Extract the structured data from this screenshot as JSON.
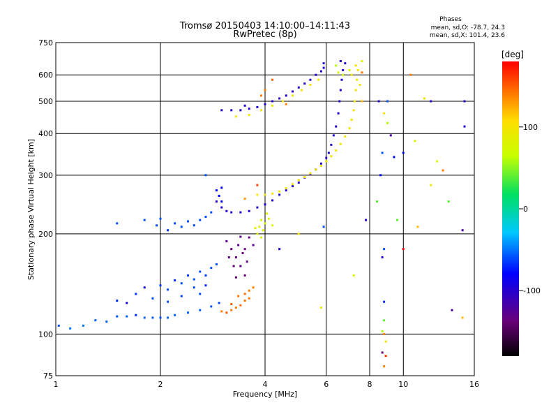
{
  "chart_data": {
    "type": "scatter",
    "title": "Tromsø 20150403 14:10:00–14:11:43",
    "subtitle": "RwPretec (8p)",
    "xlabel": "Frequency [MHz]",
    "ylabel": "Stationary phase Virtual Height [km]",
    "xscale": "log",
    "yscale": "log",
    "xlim": [
      1,
      16
    ],
    "ylim": [
      75,
      750
    ],
    "x_ticks": [
      1,
      2,
      4,
      6,
      8,
      10,
      16
    ],
    "x_tick_labels": [
      "1",
      "2",
      "4",
      "6",
      "8",
      "10",
      "16"
    ],
    "y_ticks": [
      75,
      100,
      200,
      300,
      400,
      500,
      600,
      750
    ],
    "y_tick_labels": [
      "75",
      "100",
      "200",
      "300",
      "400",
      "500",
      "600",
      "750"
    ],
    "grid": true,
    "stats": {
      "heading": "Phases",
      "line1": "mean, sd,O: -78.7, 24.3",
      "line2": "mean, sd,X: 101.4, 23.6"
    },
    "colorbar": {
      "label": "[deg]",
      "range": [
        -180,
        180
      ],
      "ticks": [
        100,
        0,
        -100
      ],
      "tick_labels": [
        "100",
        "0",
        "-100"
      ]
    },
    "series": [
      {
        "note": "lower trace",
        "points": [
          [
            1.02,
            106,
            -60
          ],
          [
            1.1,
            104,
            -50
          ],
          [
            1.2,
            106,
            -50
          ],
          [
            1.3,
            110,
            -55
          ],
          [
            1.4,
            109,
            -55
          ],
          [
            1.5,
            113,
            -60
          ],
          [
            1.6,
            113,
            -55
          ],
          [
            1.7,
            114,
            -70
          ],
          [
            1.8,
            112,
            -55
          ],
          [
            1.9,
            112,
            -55
          ],
          [
            2.0,
            112,
            -60
          ],
          [
            2.1,
            112,
            -55
          ],
          [
            2.2,
            114,
            -55
          ],
          [
            2.4,
            116,
            -55
          ],
          [
            2.6,
            118,
            -55
          ],
          [
            2.8,
            121,
            -60
          ],
          [
            2.95,
            124,
            -60
          ]
        ]
      },
      {
        "note": "lower cloud",
        "points": [
          [
            1.5,
            126,
            -70
          ],
          [
            1.6,
            124,
            -90
          ],
          [
            1.7,
            132,
            -65
          ],
          [
            1.8,
            138,
            -90
          ],
          [
            1.9,
            128,
            -60
          ],
          [
            2.0,
            140,
            -65
          ],
          [
            2.1,
            136,
            -60
          ],
          [
            2.2,
            145,
            -70
          ],
          [
            2.3,
            142,
            -60
          ],
          [
            2.4,
            150,
            -65
          ],
          [
            2.5,
            146,
            -60
          ],
          [
            2.6,
            154,
            -60
          ],
          [
            2.7,
            150,
            -65
          ],
          [
            2.8,
            158,
            -60
          ],
          [
            2.9,
            162,
            -60
          ],
          [
            2.6,
            132,
            -60
          ],
          [
            2.3,
            130,
            -65
          ],
          [
            2.1,
            125,
            -60
          ],
          [
            2.7,
            140,
            -70
          ],
          [
            2.5,
            138,
            -60
          ]
        ]
      },
      {
        "note": "purple cluster",
        "points": [
          [
            3.1,
            190,
            -130
          ],
          [
            3.2,
            180,
            -140
          ],
          [
            3.3,
            170,
            -130
          ],
          [
            3.4,
            160,
            -130
          ],
          [
            3.5,
            150,
            -140
          ],
          [
            3.15,
            170,
            -130
          ],
          [
            3.25,
            160,
            -140
          ],
          [
            3.35,
            185,
            -130
          ],
          [
            3.45,
            175,
            -140
          ],
          [
            3.55,
            165,
            -130
          ],
          [
            3.6,
            195,
            -135
          ],
          [
            3.7,
            185,
            -130
          ],
          [
            3.3,
            148,
            -140
          ],
          [
            3.4,
            196,
            -130
          ],
          [
            3.5,
            180,
            -135
          ]
        ]
      },
      {
        "note": "orange cluster",
        "points": [
          [
            3.0,
            117,
            140
          ],
          [
            3.1,
            116,
            150
          ],
          [
            3.2,
            118,
            140
          ],
          [
            3.3,
            120,
            140
          ],
          [
            3.4,
            122,
            145
          ],
          [
            3.5,
            126,
            140
          ],
          [
            3.6,
            128,
            140
          ],
          [
            3.2,
            123,
            150
          ],
          [
            3.35,
            130,
            140
          ],
          [
            3.5,
            132,
            145
          ],
          [
            3.6,
            135,
            140
          ],
          [
            3.7,
            138,
            140
          ]
        ]
      },
      {
        "note": "middle cyan",
        "points": [
          [
            1.5,
            215,
            -60
          ],
          [
            1.8,
            220,
            -60
          ],
          [
            2.0,
            222,
            -60
          ],
          [
            2.2,
            215,
            -60
          ],
          [
            2.4,
            218,
            -60
          ],
          [
            2.1,
            205,
            -65
          ],
          [
            2.3,
            210,
            -60
          ],
          [
            2.5,
            212,
            -60
          ],
          [
            2.6,
            220,
            -60
          ],
          [
            2.7,
            225,
            -60
          ],
          [
            2.8,
            232,
            -60
          ],
          [
            1.95,
            212,
            -60
          ]
        ]
      },
      {
        "note": "O trace F2",
        "points": [
          [
            2.9,
            250,
            -100
          ],
          [
            3.0,
            240,
            -100
          ],
          [
            3.1,
            234,
            -100
          ],
          [
            3.2,
            232,
            -100
          ],
          [
            3.4,
            232,
            -100
          ],
          [
            3.6,
            234,
            -100
          ],
          [
            3.8,
            240,
            -100
          ],
          [
            4.0,
            245,
            -100
          ],
          [
            4.2,
            252,
            -100
          ],
          [
            4.4,
            262,
            -100
          ],
          [
            4.6,
            270,
            -100
          ],
          [
            4.8,
            278,
            -100
          ],
          [
            5.0,
            285,
            -100
          ],
          [
            5.2,
            295,
            -100
          ],
          [
            5.4,
            302,
            -100
          ],
          [
            5.6,
            312,
            -100
          ],
          [
            5.8,
            325,
            -100
          ],
          [
            6.0,
            338,
            -100
          ],
          [
            6.1,
            350,
            -100
          ],
          [
            6.2,
            370,
            -100
          ],
          [
            6.3,
            395,
            -100
          ],
          [
            6.4,
            420,
            -100
          ],
          [
            6.5,
            460,
            -100
          ],
          [
            6.55,
            500,
            -100
          ],
          [
            6.6,
            540,
            -100
          ],
          [
            6.65,
            580,
            -100
          ],
          [
            6.7,
            620,
            -100
          ],
          [
            2.9,
            270,
            -80
          ],
          [
            2.95,
            260,
            -80
          ],
          [
            3.0,
            250,
            -80
          ],
          [
            3.0,
            275,
            -80
          ]
        ]
      },
      {
        "note": "X trace F2",
        "points": [
          [
            3.8,
            262,
            100
          ],
          [
            4.0,
            262,
            100
          ],
          [
            4.2,
            264,
            100
          ],
          [
            4.4,
            268,
            100
          ],
          [
            4.6,
            274,
            100
          ],
          [
            4.8,
            282,
            100
          ],
          [
            5.0,
            290,
            100
          ],
          [
            5.2,
            296,
            100
          ],
          [
            5.4,
            304,
            100
          ],
          [
            5.6,
            312,
            100
          ],
          [
            5.8,
            320,
            100
          ],
          [
            6.0,
            330,
            100
          ],
          [
            6.2,
            342,
            100
          ],
          [
            6.4,
            356,
            100
          ],
          [
            6.6,
            372,
            100
          ],
          [
            6.8,
            392,
            100
          ],
          [
            7.0,
            415,
            100
          ],
          [
            7.1,
            440,
            100
          ],
          [
            7.2,
            470,
            100
          ],
          [
            7.25,
            500,
            100
          ],
          [
            7.3,
            540,
            100
          ],
          [
            7.35,
            580,
            100
          ],
          [
            7.4,
            620,
            100
          ],
          [
            7.1,
            600,
            100
          ]
        ]
      },
      {
        "note": "yellow cluster",
        "points": [
          [
            3.8,
            200,
            80
          ],
          [
            3.85,
            210,
            80
          ],
          [
            3.9,
            220,
            80
          ],
          [
            3.95,
            205,
            80
          ],
          [
            4.0,
            215,
            80
          ],
          [
            4.1,
            222,
            80
          ],
          [
            3.9,
            195,
            80
          ],
          [
            4.05,
            230,
            80
          ],
          [
            4.2,
            212,
            80
          ],
          [
            3.75,
            208,
            80
          ]
        ]
      },
      {
        "note": "upper O trace",
        "points": [
          [
            3.0,
            470,
            -100
          ],
          [
            3.2,
            470,
            -100
          ],
          [
            3.4,
            470,
            -100
          ],
          [
            3.6,
            475,
            -100
          ],
          [
            3.8,
            480,
            -100
          ],
          [
            4.0,
            490,
            -100
          ],
          [
            4.2,
            500,
            -100
          ],
          [
            4.4,
            510,
            -100
          ],
          [
            4.6,
            520,
            -100
          ],
          [
            4.8,
            535,
            -100
          ],
          [
            5.0,
            550,
            -100
          ],
          [
            5.2,
            565,
            -100
          ],
          [
            5.4,
            580,
            -100
          ],
          [
            5.6,
            600,
            -100
          ],
          [
            5.8,
            615,
            -100
          ],
          [
            5.9,
            630,
            -100
          ],
          [
            5.9,
            650,
            -100
          ],
          [
            3.5,
            485,
            -100
          ]
        ]
      },
      {
        "note": "upper X trace",
        "points": [
          [
            3.3,
            450,
            100
          ],
          [
            3.6,
            455,
            100
          ],
          [
            3.9,
            470,
            100
          ],
          [
            4.2,
            485,
            100
          ],
          [
            4.5,
            500,
            100
          ],
          [
            4.8,
            520,
            100
          ],
          [
            5.1,
            540,
            100
          ],
          [
            5.4,
            560,
            100
          ],
          [
            5.7,
            580,
            100
          ],
          [
            4.0,
            540,
            140
          ],
          [
            3.9,
            520,
            140
          ]
        ]
      },
      {
        "note": "near vertical",
        "points": [
          [
            6.4,
            640,
            60
          ],
          [
            6.5,
            610,
            80
          ],
          [
            6.6,
            660,
            -100
          ],
          [
            6.7,
            600,
            70
          ],
          [
            6.8,
            650,
            -100
          ],
          [
            7.0,
            620,
            80
          ],
          [
            7.3,
            640,
            100
          ],
          [
            7.6,
            660,
            80
          ],
          [
            7.6,
            610,
            140
          ],
          [
            7.5,
            560,
            100
          ],
          [
            7.6,
            500,
            120
          ]
        ]
      },
      {
        "note": "scattered",
        "points": [
          [
            8.5,
            500,
            -100
          ],
          [
            8.8,
            460,
            100
          ],
          [
            9.0,
            430,
            60
          ],
          [
            9.0,
            500,
            -60
          ],
          [
            10.5,
            600,
            140
          ],
          [
            11.5,
            510,
            100
          ],
          [
            12.0,
            500,
            -100
          ],
          [
            15.0,
            500,
            -100
          ],
          [
            15.0,
            420,
            -100
          ],
          [
            13.5,
            250,
            40
          ],
          [
            10.0,
            180,
            180
          ],
          [
            11.0,
            210,
            120
          ],
          [
            12.5,
            330,
            70
          ],
          [
            12.0,
            280,
            90
          ],
          [
            10.8,
            380,
            80
          ],
          [
            8.4,
            250,
            40
          ],
          [
            8.6,
            300,
            -80
          ],
          [
            8.7,
            350,
            -60
          ],
          [
            8.8,
            180,
            -60
          ],
          [
            8.7,
            170,
            -100
          ],
          [
            8.8,
            125,
            -70
          ],
          [
            8.8,
            110,
            40
          ],
          [
            8.7,
            102,
            60
          ],
          [
            8.8,
            100,
            140
          ],
          [
            8.9,
            95,
            100
          ],
          [
            8.7,
            88,
            -140
          ],
          [
            8.9,
            86,
            160
          ],
          [
            8.8,
            80,
            140
          ],
          [
            9.6,
            220,
            40
          ],
          [
            9.4,
            340,
            -80
          ],
          [
            13.8,
            118,
            -120
          ],
          [
            14.8,
            205,
            -120
          ],
          [
            14.8,
            112,
            120
          ],
          [
            13.0,
            310,
            140
          ],
          [
            9.2,
            395,
            -120
          ],
          [
            10.0,
            350,
            -80
          ],
          [
            7.8,
            220,
            -100
          ],
          [
            7.2,
            150,
            80
          ],
          [
            5.8,
            120,
            90
          ],
          [
            5.9,
            210,
            -60
          ],
          [
            5.0,
            200,
            100
          ],
          [
            4.4,
            180,
            -100
          ],
          [
            2.7,
            300,
            -60
          ],
          [
            3.5,
            255,
            130
          ],
          [
            3.8,
            280,
            160
          ],
          [
            4.6,
            490,
            140
          ],
          [
            4.2,
            580,
            150
          ]
        ]
      }
    ]
  }
}
